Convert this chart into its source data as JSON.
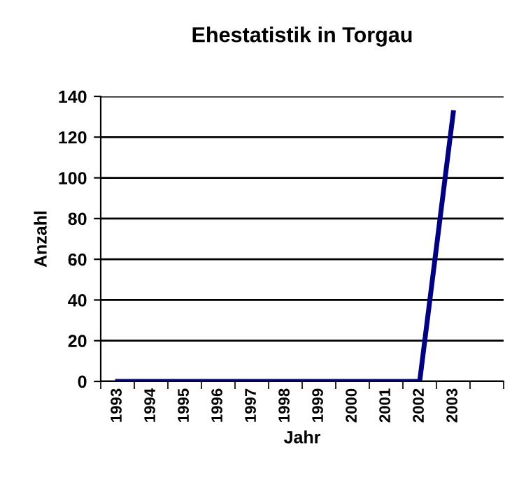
{
  "chart_data": {
    "type": "line",
    "title": "Ehestatistik in Torgau",
    "xlabel": "Jahr",
    "ylabel": "Anzahl",
    "categories": [
      "1993",
      "1994",
      "1995",
      "1996",
      "1997",
      "1998",
      "1999",
      "2000",
      "2001",
      "2002",
      "2003",
      null
    ],
    "series": [
      {
        "color": "#000080",
        "values": [
          0,
          0,
          0,
          0,
          0,
          0,
          0,
          0,
          0,
          0,
          132,
          null
        ]
      }
    ],
    "ylim": [
      0,
      140
    ],
    "yticks": [
      0,
      20,
      40,
      60,
      80,
      100,
      120,
      140
    ],
    "grid": "y",
    "legend": false,
    "marker": "none",
    "line_style": "solid"
  }
}
